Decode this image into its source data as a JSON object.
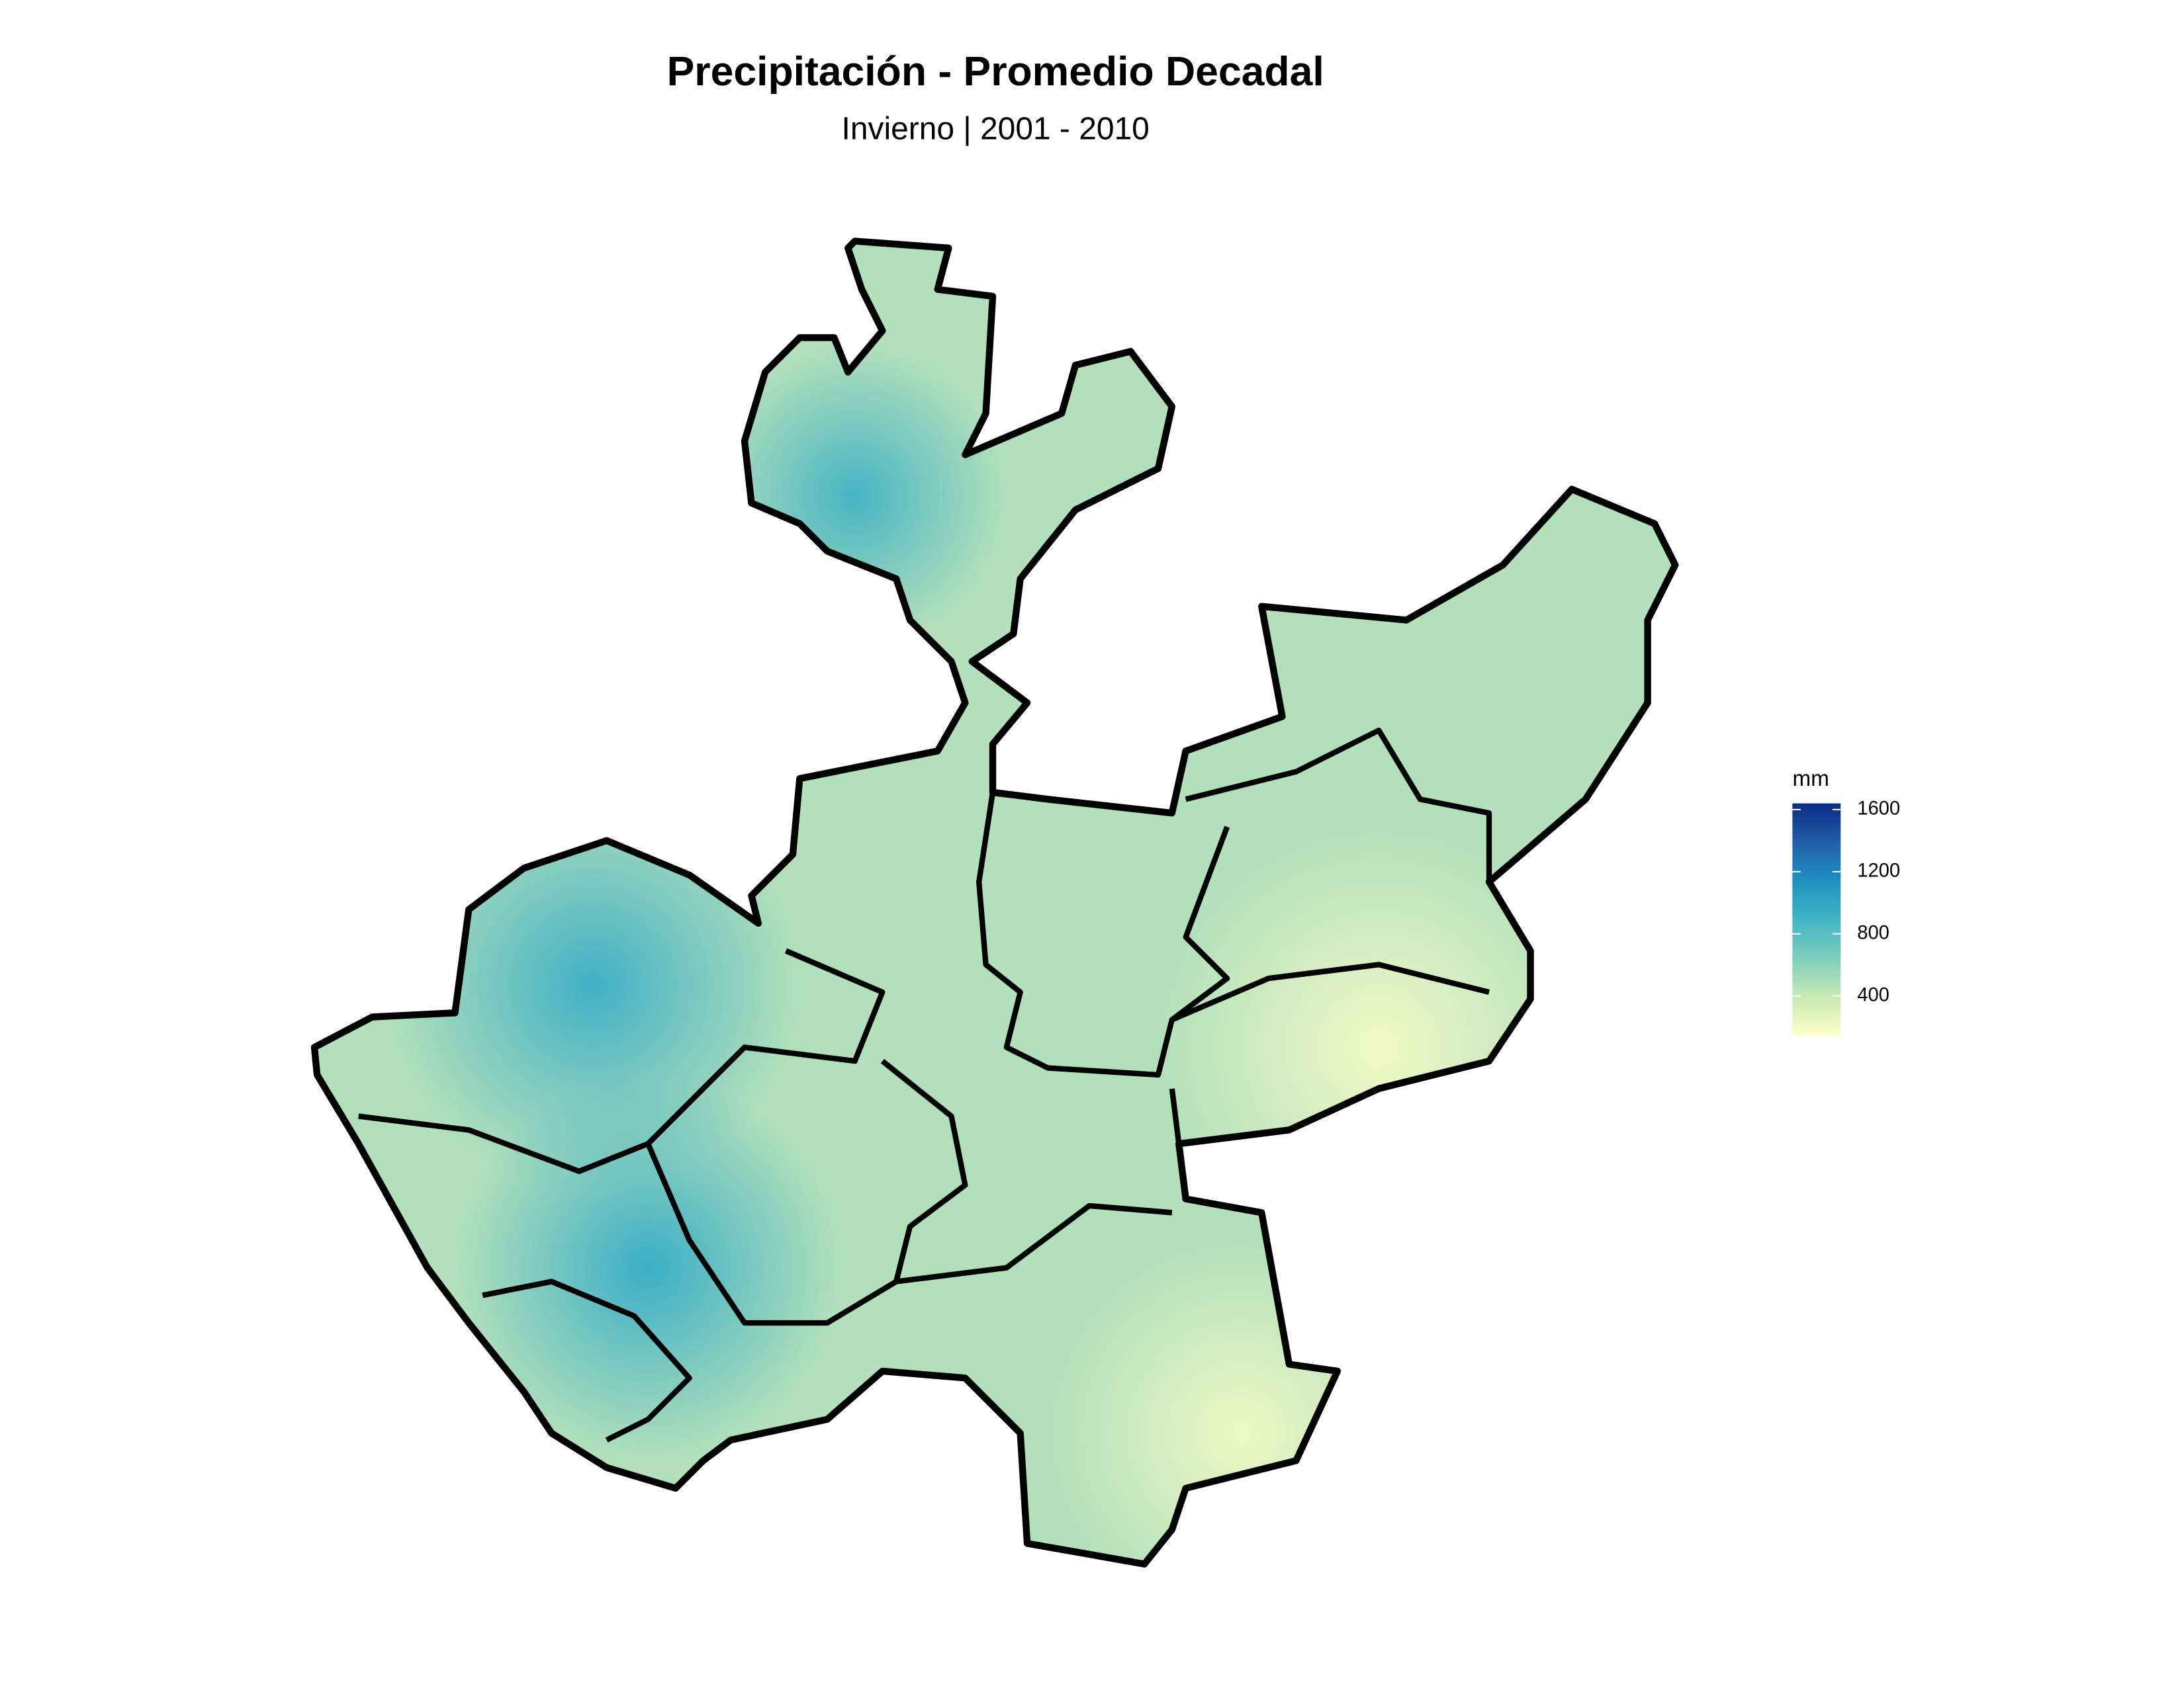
{
  "chart_data": {
    "type": "choropleth-map",
    "title": "Precipitación - Promedio Decadal",
    "subtitle": "Invierno | 2001 - 2010",
    "legend": {
      "title": "mm",
      "lim": [
        140,
        1640
      ],
      "ticks": [
        400,
        800,
        1200,
        1600
      ],
      "colors": [
        "#ffffcc",
        "#c7e9b4",
        "#7fcdbb",
        "#41b6c4",
        "#1d91c0",
        "#225ea8",
        "#0c2c84"
      ]
    }
  }
}
